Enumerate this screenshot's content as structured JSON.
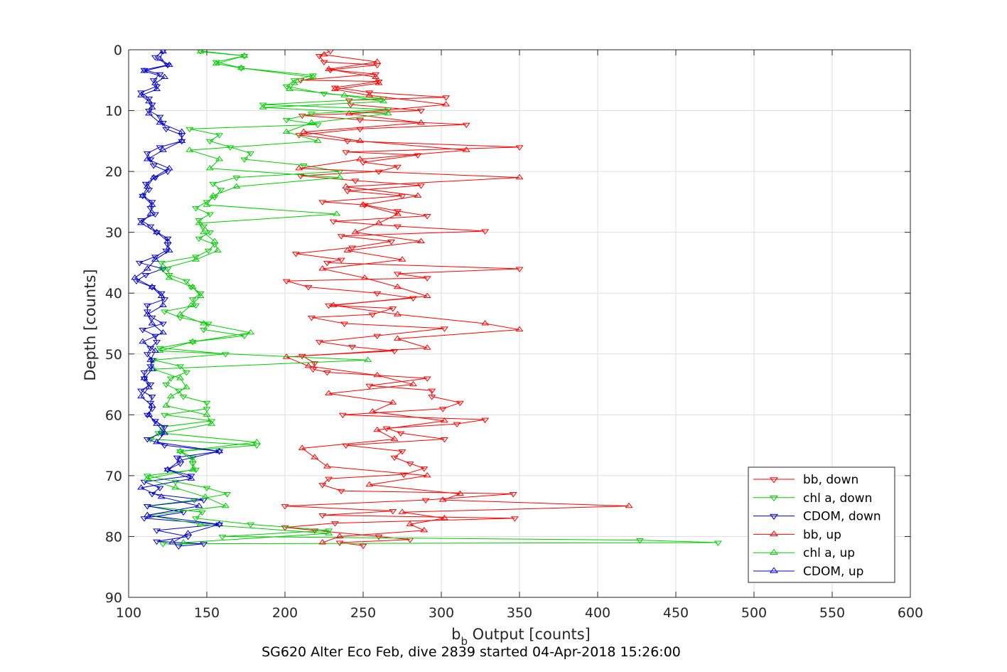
{
  "chart_data": {
    "type": "line",
    "title": "",
    "caption": "SG620 Alter Eco Feb, dive 2839 started 04-Apr-2018 15:26:00",
    "xlabel_main": "b",
    "xlabel_sub": "b",
    "xlabel_rest": " Output [counts]",
    "ylabel": "Depth [counts]",
    "xlim": [
      100,
      600
    ],
    "ylim": [
      0,
      90
    ],
    "y_reversed": true,
    "grid": true,
    "legend_position": "bottom-right",
    "xticks": [
      "100",
      "150",
      "200",
      "250",
      "300",
      "350",
      "400",
      "450",
      "500",
      "550",
      "600"
    ],
    "yticks": [
      "0",
      "10",
      "20",
      "30",
      "40",
      "50",
      "60",
      "70",
      "80",
      "90"
    ],
    "series": [
      {
        "name": "bb, down",
        "color": "#ff0000",
        "marker": "triangle-down",
        "depth": [
          0.2,
          1.0,
          2.0,
          2.5,
          3.3,
          4.0,
          5.0,
          5.2,
          6.2,
          7.0,
          7.8,
          8.3,
          9.0,
          10.0,
          10.8,
          11.5,
          12.3,
          13.0,
          14.0,
          15.0,
          16.0,
          16.8,
          17.3,
          18.5,
          19.2,
          20.0,
          20.7,
          21.5,
          22.3,
          23.2,
          24.0,
          25.0,
          25.5,
          26.5,
          27.3,
          28.2,
          29.0,
          29.8,
          30.6,
          31.5,
          32.5,
          33.5,
          34.5,
          35.0,
          36.0,
          36.8,
          37.5,
          38.0,
          39.0,
          40.0,
          40.8,
          42.0,
          42.5,
          43.5,
          44.0,
          45.0,
          45.8,
          47.0,
          48.0,
          48.8,
          49.5,
          50.3,
          51.5,
          52.5,
          53.0,
          54.0,
          55.2,
          56.0,
          57.0,
          58.0,
          59.0,
          60.0,
          60.8,
          61.5,
          62.2,
          63.0,
          64.0,
          65.0,
          66.0,
          67.0,
          68.0,
          68.8,
          69.8,
          70.5,
          71.5,
          72.5,
          73.0,
          74.0,
          75.0,
          75.8,
          76.5,
          77.0,
          77.8,
          78.5,
          79.0,
          80.0,
          80.5,
          81.0,
          81.5
        ],
        "values": [
          229,
          222,
          225,
          259,
          229,
          258,
          210,
          260,
          232,
          254,
          303,
          241,
          242,
          287,
          211,
          248,
          316,
          248,
          209,
          240,
          350,
          239,
          285,
          250,
          272,
          260,
          210,
          245,
          287,
          240,
          275,
          224,
          251,
          272,
          291,
          231,
          272,
          328,
          236,
          268,
          243,
          207,
          236,
          227,
          350,
          272,
          291,
          201,
          215,
          259,
          282,
          228,
          269,
          256,
          217,
          238,
          302,
          259,
          222,
          243,
          270,
          211,
          219,
          218,
          227,
          291,
          254,
          294,
          294,
          312,
          301,
          237,
          328,
          310,
          265,
          274,
          302,
          239,
          275,
          270,
          280,
          289,
          276,
          228,
          224,
          236,
          346,
          290,
          200,
          269,
          224,
          347,
          232,
          200,
          219,
          260,
          280,
          235,
          250
        ]
      },
      {
        "name": "chl a, down",
        "color": "#00cc00",
        "marker": "triangle-down",
        "depth": [
          0.2,
          1.0,
          2.0,
          3.0,
          4.2,
          5.0,
          6.0,
          7.2,
          8.0,
          9.0,
          9.8,
          10.5,
          11.5,
          12.3,
          13.0,
          14.0,
          15.0,
          16.0,
          17.0,
          18.0,
          19.0,
          20.0,
          21.0,
          22.0,
          23.0,
          24.2,
          25.0,
          26.0,
          27.0,
          28.0,
          29.0,
          30.0,
          31.0,
          32.0,
          33.0,
          34.0,
          35.0,
          36.0,
          37.0,
          38.0,
          39.0,
          40.0,
          41.0,
          42.0,
          43.0,
          44.0,
          45.0,
          46.0,
          47.0,
          48.0,
          49.0,
          50.0,
          51.0,
          52.0,
          53.0,
          54.0,
          55.0,
          56.0,
          57.0,
          58.0,
          59.0,
          60.0,
          61.0,
          62.0,
          63.0,
          64.0,
          65.0,
          66.0,
          67.0,
          68.0,
          69.0,
          70.0,
          71.0,
          72.0,
          73.0,
          74.0,
          75.0,
          76.0,
          77.0,
          78.0,
          79.0,
          80.0,
          80.6,
          81.0,
          81.2
        ],
        "values": [
          146,
          174,
          156,
          172,
          218,
          206,
          201,
          225,
          263,
          186,
          266,
          217,
          201,
          221,
          139,
          158,
          152,
          165,
          178,
          174,
          212,
          235,
          169,
          154,
          159,
          155,
          150,
          143,
          152,
          145,
          148,
          152,
          145,
          155,
          151,
          143,
          121,
          125,
          126,
          137,
          140,
          146,
          141,
          143,
          123,
          133,
          151,
          148,
          174,
          141,
          120,
          162,
          116,
          133,
          137,
          127,
          124,
          132,
          135,
          150,
          150,
          123,
          153,
          121,
          119,
          114,
          182,
          133,
          141,
          141,
          143,
          112,
          130,
          150,
          163,
          142,
          112,
          147,
          143,
          178,
          228,
          160,
          427,
          477,
          122
        ]
      },
      {
        "name": "CDOM, down",
        "color": "#0000cc",
        "marker": "triangle-down",
        "depth": [
          0.2,
          1.2,
          2.5,
          3.3,
          4.0,
          5.0,
          6.0,
          7.0,
          8.0,
          9.0,
          10.0,
          11.0,
          12.0,
          13.0,
          14.0,
          15.0,
          16.0,
          17.0,
          18.0,
          19.0,
          20.0,
          21.0,
          22.0,
          23.0,
          24.0,
          25.0,
          26.0,
          27.0,
          28.0,
          29.0,
          30.0,
          31.0,
          32.0,
          33.0,
          34.0,
          35.0,
          36.0,
          37.0,
          38.0,
          39.0,
          40.0,
          41.0,
          42.0,
          43.0,
          44.0,
          45.0,
          46.0,
          47.0,
          48.0,
          49.0,
          50.0,
          51.0,
          52.0,
          53.0,
          54.0,
          55.0,
          56.0,
          57.0,
          58.0,
          59.0,
          60.0,
          61.0,
          62.0,
          63.0,
          64.0,
          65.0,
          66.0,
          67.0,
          68.0,
          69.0,
          70.0,
          71.0,
          72.0,
          73.0,
          74.0,
          75.0,
          76.0,
          77.0,
          78.0,
          79.0,
          80.0,
          80.8,
          81.2,
          81.6
        ],
        "values": [
          122,
          117,
          125,
          110,
          120,
          116,
          118,
          108,
          113,
          115,
          113,
          120,
          122,
          124,
          134,
          134,
          120,
          112,
          114,
          116,
          125,
          117,
          111,
          113,
          109,
          115,
          114,
          117,
          108,
          114,
          118,
          125,
          125,
          124,
          117,
          107,
          122,
          111,
          105,
          115,
          121,
          123,
          112,
          112,
          115,
          122,
          109,
          117,
          118,
          114,
          112,
          115,
          114,
          110,
          110,
          114,
          108,
          115,
          114,
          115,
          112,
          117,
          123,
          121,
          112,
          123,
          158,
          131,
          133,
          125,
          140,
          110,
          120,
          115,
          148,
          112,
          135,
          110,
          158,
          118,
          138,
          118,
          148,
          132
        ]
      },
      {
        "name": "bb, up",
        "color": "#ff0000",
        "marker": "triangle-up",
        "depth": [
          0.8,
          2.0,
          3.2,
          4.5,
          5.5,
          6.5,
          7.5,
          9.0,
          10.5,
          12.0,
          13.5,
          15.0,
          16.5,
          18.0,
          19.5,
          21.0,
          22.5,
          24.0,
          25.5,
          27.0,
          28.5,
          30.0,
          31.5,
          33.0,
          34.5,
          36.0,
          37.5,
          39.0,
          40.5,
          42.0,
          43.5,
          45.0,
          46.0,
          47.5,
          49.0,
          50.5,
          52.0,
          53.5,
          55.0,
          56.5,
          58.0,
          59.5,
          61.0,
          62.5,
          64.0,
          65.5,
          67.0,
          68.5,
          70.0,
          71.5,
          73.0,
          74.0,
          75.0,
          76.0,
          77.0,
          78.0,
          79.0,
          80.0,
          81.0
        ],
        "values": [
          225,
          259,
          228,
          258,
          260,
          232,
          254,
          303,
          241,
          287,
          212,
          248,
          316,
          248,
          209,
          350,
          239,
          285,
          250,
          272,
          260,
          245,
          287,
          240,
          275,
          224,
          251,
          272,
          291,
          231,
          272,
          328,
          350,
          272,
          291,
          201,
          215,
          259,
          282,
          228,
          269,
          256,
          302,
          259,
          270,
          211,
          219,
          227,
          291,
          254,
          312,
          301,
          420,
          275,
          302,
          280,
          289,
          235,
          224
        ]
      },
      {
        "name": "chl a, up",
        "color": "#00cc00",
        "marker": "triangle-up",
        "depth": [
          0.3,
          1.0,
          2.3,
          3.0,
          4.5,
          5.5,
          6.5,
          7.5,
          8.5,
          9.5,
          10.5,
          12.0,
          13.5,
          15.0,
          16.5,
          18.0,
          19.5,
          21.0,
          22.5,
          24.0,
          25.5,
          27.0,
          28.5,
          30.0,
          31.5,
          33.0,
          34.5,
          36.0,
          37.5,
          39.0,
          40.5,
          42.0,
          43.5,
          45.0,
          46.5,
          48.0,
          49.5,
          51.0,
          52.5,
          54.0,
          55.5,
          57.0,
          58.5,
          60.0,
          61.5,
          63.0,
          64.5,
          66.0,
          67.5,
          69.0,
          70.5,
          72.0,
          73.5,
          75.0,
          76.5,
          78.0,
          79.5,
          81.0
        ],
        "values": [
          146,
          174,
          156,
          172,
          218,
          206,
          203,
          238,
          263,
          186,
          266,
          217,
          201,
          221,
          139,
          158,
          152,
          235,
          169,
          154,
          150,
          233,
          145,
          148,
          155,
          157,
          143,
          121,
          126,
          141,
          146,
          140,
          133,
          148,
          178,
          141,
          120,
          253,
          116,
          133,
          137,
          127,
          124,
          150,
          153,
          121,
          182,
          133,
          141,
          141,
          112,
          130,
          149,
          162,
          112,
          146,
          228,
          135
        ]
      },
      {
        "name": "CDOM, up",
        "color": "#0000cc",
        "marker": "triangle-up",
        "depth": [
          0.3,
          1.5,
          2.5,
          3.5,
          4.5,
          5.5,
          6.5,
          7.5,
          8.5,
          9.5,
          10.5,
          12.0,
          13.5,
          15.0,
          16.5,
          18.0,
          19.5,
          21.0,
          22.5,
          24.0,
          25.5,
          27.0,
          28.5,
          30.0,
          31.5,
          33.0,
          34.5,
          36.0,
          37.5,
          39.0,
          40.5,
          42.0,
          43.5,
          45.0,
          46.5,
          48.0,
          49.5,
          51.0,
          52.5,
          54.0,
          55.5,
          57.0,
          58.5,
          60.0,
          61.5,
          63.0,
          64.5,
          66.0,
          67.5,
          69.0,
          70.5,
          72.0,
          73.5,
          75.0,
          76.5,
          78.0,
          79.5,
          81.0
        ],
        "values": [
          122,
          120,
          126,
          110,
          123,
          117,
          118,
          108,
          113,
          115,
          113,
          120,
          134,
          134,
          122,
          112,
          126,
          116,
          112,
          109,
          115,
          114,
          108,
          118,
          125,
          126,
          117,
          112,
          104,
          115,
          121,
          122,
          112,
          115,
          122,
          109,
          117,
          114,
          115,
          110,
          113,
          108,
          115,
          113,
          118,
          123,
          118,
          158,
          133,
          125,
          140,
          108,
          121,
          145,
          112,
          158,
          138,
          128
        ]
      }
    ]
  }
}
